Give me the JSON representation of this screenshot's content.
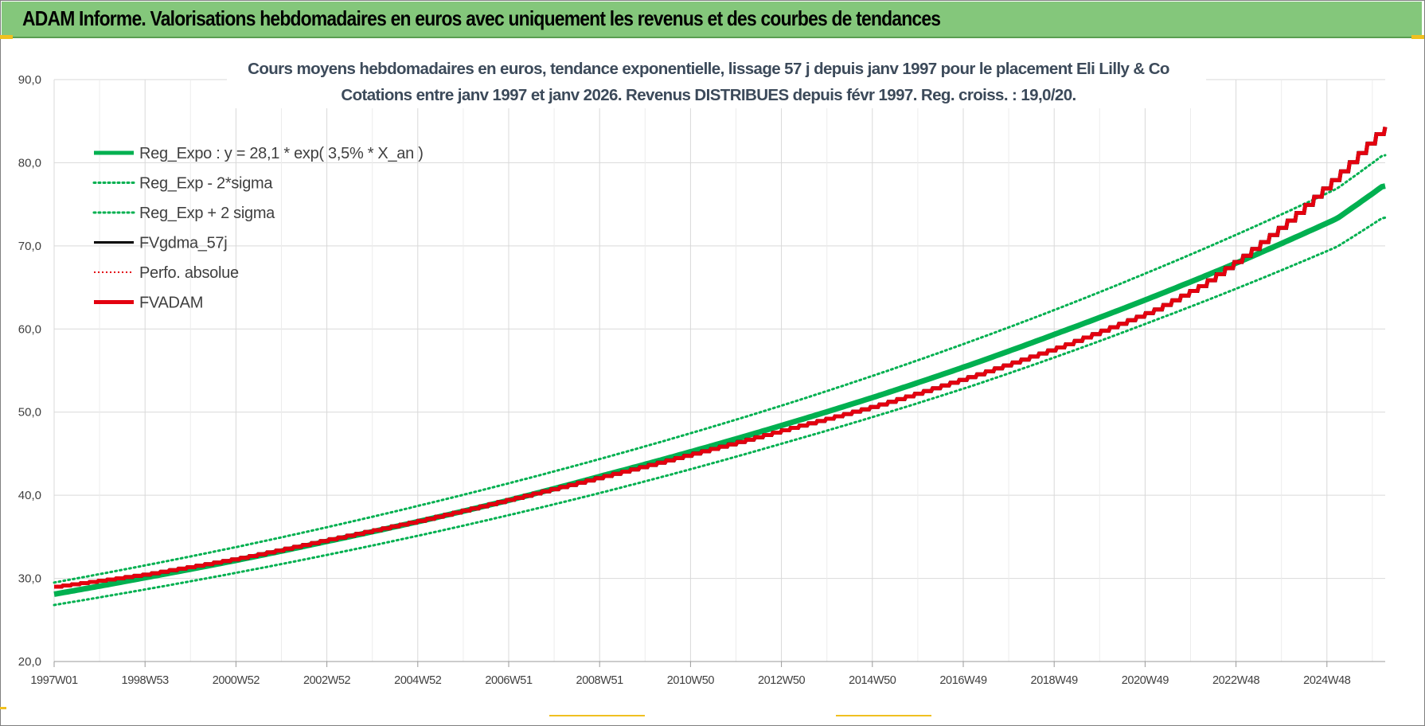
{
  "header": {
    "title": "ADAM Informe. Valorisations hebdomadaires en euros avec uniquement les revenus et des courbes de tendances"
  },
  "colors": {
    "banner": "#84c77b",
    "reg_green": "#00b050",
    "fva_red": "#e3000f",
    "gdma_black": "#000000"
  },
  "chart_data": {
    "type": "line",
    "title_lines": [
      "Cours moyens hebdomadaires en euros, tendance exponentielle, lissage 57 j depuis janv 1997  pour le placement Eli Lilly & Co",
      "Cotations entre janv 1997 et janv 2026. Revenus DISTRIBUES depuis févr 1997. Reg. croiss. : 19,0/20."
    ],
    "y_ticks": [
      "90,0",
      "80,0",
      "70,0",
      "60,0",
      "50,0",
      "40,0",
      "30,0",
      "20,0"
    ],
    "ylim": [
      20,
      90
    ],
    "x_ticks": [
      "1997W01",
      "1998W53",
      "2000W52",
      "2002W52",
      "2004W52",
      "2006W51",
      "2008W51",
      "2010W50",
      "2012W50",
      "2014W50",
      "2016W49",
      "2018W49",
      "2020W49",
      "2022W48",
      "2024W48"
    ],
    "x_years_range": [
      1997.0,
      2026.05
    ],
    "grid": true,
    "legend_position": "top-left",
    "legend": [
      {
        "name": "Reg_Expo : y = 28,1 * exp( 3,5% *  X_an )",
        "style": "solid-thick",
        "color": "#00b050"
      },
      {
        "name": "Reg_Exp - 2*sigma",
        "style": "dotted",
        "color": "#00b050"
      },
      {
        "name": "Reg_Exp + 2 sigma",
        "style": "dotted",
        "color": "#00b050"
      },
      {
        "name": "FVgdma_57j",
        "style": "solid",
        "color": "#000000"
      },
      {
        "name": "Perfo. absolue",
        "style": "dotted-thin",
        "color": "#e3000f"
      },
      {
        "name": "FVADAM",
        "style": "solid-thick",
        "color": "#e3000f"
      }
    ],
    "series": [
      {
        "name": "Reg_Expo : y = 28,1 * exp( 3,5% *  X_an )",
        "x": [
          1997,
          1999,
          2001,
          2003,
          2005,
          2007,
          2009,
          2011,
          2013,
          2015,
          2017,
          2019,
          2021,
          2023,
          2025,
          2026
        ],
        "y": [
          28.1,
          30.1,
          32.2,
          34.5,
          36.9,
          39.5,
          42.4,
          45.4,
          48.6,
          52.0,
          55.7,
          59.7,
          63.9,
          68.4,
          73.3,
          77.2
        ]
      },
      {
        "name": "Reg_Exp - 2*sigma",
        "x": [
          1997,
          2001,
          2005,
          2009,
          2013,
          2017,
          2021,
          2025,
          2026
        ],
        "y": [
          26.8,
          30.7,
          35.2,
          40.4,
          46.4,
          53.1,
          61.0,
          69.9,
          73.4
        ]
      },
      {
        "name": "Reg_Exp + 2 sigma",
        "x": [
          1997,
          2001,
          2005,
          2009,
          2013,
          2017,
          2021,
          2025,
          2026
        ],
        "y": [
          29.5,
          33.8,
          38.8,
          44.5,
          51.0,
          58.5,
          67.1,
          76.9,
          80.9
        ]
      },
      {
        "name": "FVADAM",
        "x": [
          1997,
          1999,
          2001,
          2003,
          2005,
          2007,
          2009,
          2011,
          2013,
          2015,
          2017,
          2019,
          2021,
          2022,
          2023,
          2024,
          2025,
          2026
        ],
        "y": [
          29.0,
          30.5,
          32.4,
          34.7,
          37.0,
          39.6,
          42.3,
          45.1,
          48.0,
          50.9,
          54.3,
          58.0,
          62.3,
          65.2,
          69.0,
          73.4,
          78.5,
          84.3
        ]
      }
    ]
  }
}
